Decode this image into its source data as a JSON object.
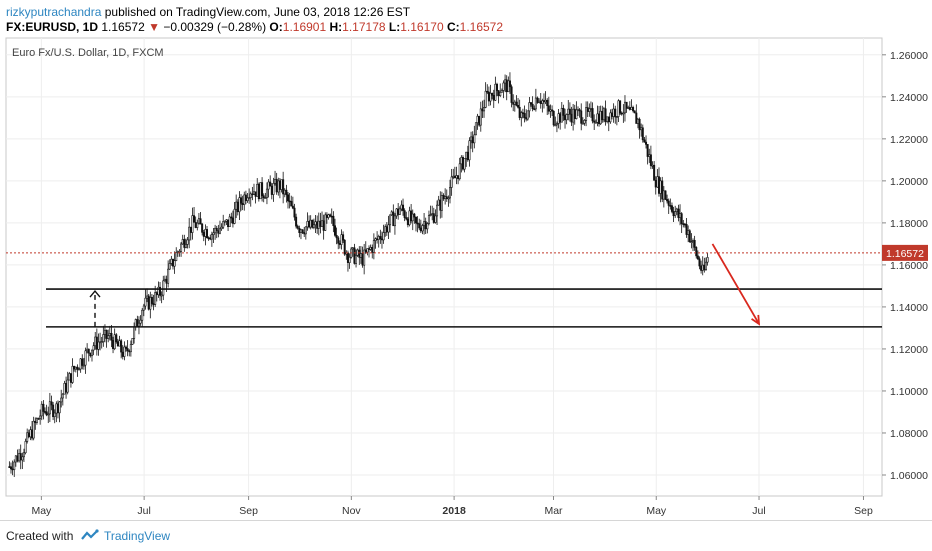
{
  "header": {
    "author": "rizkyputrachandra",
    "published": "published on TradingView.com, June 03, 2018 12:26 EST",
    "symbol": "FX:EURUSD, 1D",
    "last": "1.16572",
    "change": "−0.00329 (−0.28%)",
    "open_label": "O:",
    "open": "1.16901",
    "high_label": "H:",
    "high": "1.17178",
    "low_label": "L:",
    "low": "1.16170",
    "close_label": "C:",
    "close": "1.16572"
  },
  "colors": {
    "down": "#c0392b",
    "price_line": "#c0392b",
    "arrow": "#d9281e",
    "brand": "#2e86c1"
  },
  "footer": {
    "created": "Created with",
    "brand": "TradingView"
  },
  "chart_data": {
    "type": "line",
    "title": "Euro Fx/U.S. Dollar, 1D, FXCM",
    "price_label": "1.16572",
    "ylim": [
      1.05,
      1.268
    ],
    "y_ticks": [
      "1.26000",
      "1.24000",
      "1.22000",
      "1.20000",
      "1.18000",
      "1.16000",
      "1.14000",
      "1.12000",
      "1.10000",
      "1.08000",
      "1.06000"
    ],
    "x_ticks": [
      "May",
      "Jul",
      "Sep",
      "Nov",
      "2018",
      "Mar",
      "May",
      "Jul",
      "Sep"
    ],
    "horizontal_levels": [
      1.1485,
      1.1305
    ],
    "current_price": 1.16572,
    "projection": {
      "from": 1.17,
      "to": 1.13
    },
    "series": [
      {
        "x": [
          "2017-04-12",
          "2017-04-20",
          "2017-05-01",
          "2017-05-10",
          "2017-05-20",
          "2017-06-01",
          "2017-06-10",
          "2017-06-20",
          "2017-06-30",
          "2017-07-10",
          "2017-07-20",
          "2017-07-30",
          "2017-08-10",
          "2017-08-20",
          "2017-09-01",
          "2017-09-10",
          "2017-09-20",
          "2017-10-01",
          "2017-10-10",
          "2017-10-20",
          "2017-10-30",
          "2017-11-08",
          "2017-11-20",
          "2017-11-30",
          "2017-12-10",
          "2017-12-20",
          "2017-12-31",
          "2018-01-10",
          "2018-01-20",
          "2018-02-01",
          "2018-02-10",
          "2018-02-20",
          "2018-03-01",
          "2018-03-10",
          "2018-03-20",
          "2018-04-01",
          "2018-04-10",
          "2018-04-20",
          "2018-05-01",
          "2018-05-10",
          "2018-05-20",
          "2018-05-29",
          "2018-06-01"
        ],
        "values": [
          1.064,
          1.072,
          1.09,
          1.092,
          1.11,
          1.122,
          1.126,
          1.117,
          1.14,
          1.146,
          1.165,
          1.18,
          1.175,
          1.18,
          1.196,
          1.195,
          1.198,
          1.178,
          1.178,
          1.181,
          1.165,
          1.163,
          1.176,
          1.187,
          1.178,
          1.184,
          1.199,
          1.215,
          1.24,
          1.246,
          1.229,
          1.241,
          1.23,
          1.232,
          1.231,
          1.231,
          1.235,
          1.229,
          1.2,
          1.188,
          1.176,
          1.155,
          1.166
        ]
      }
    ]
  }
}
